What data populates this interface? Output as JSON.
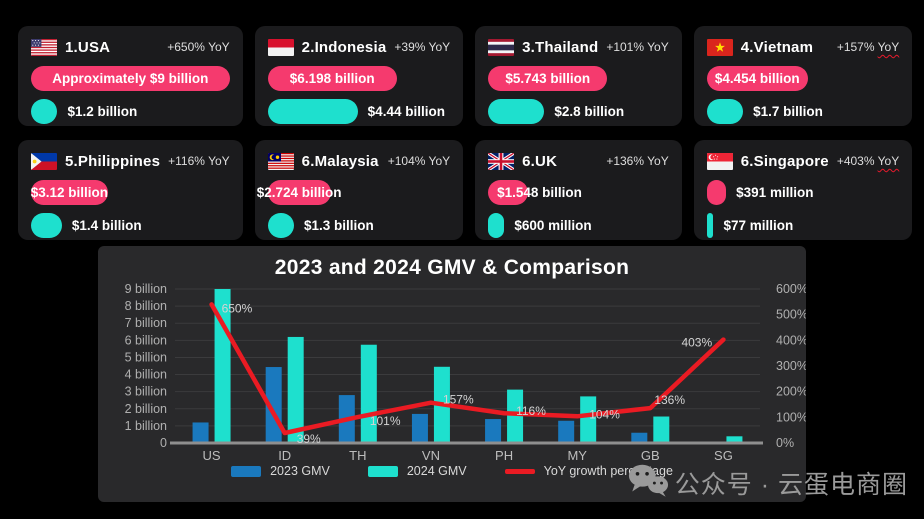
{
  "cards": [
    {
      "name": "1.USA",
      "yoy": "+650%",
      "yoy_label": "YoY",
      "yoy_wavy": false,
      "gmv_2024": "Approximately $9 billion",
      "gmv_2024_billion": 9.0,
      "pink_label_mode": "inside",
      "gmv_2023": "$1.2 billion",
      "gmv_2023_billion": 1.2,
      "flag": "usa-flag"
    },
    {
      "name": "2.Indonesia",
      "yoy": "+39% ",
      "yoy_label": "YoY",
      "yoy_wavy": false,
      "gmv_2024": "$6.198 billion",
      "gmv_2024_billion": 6.198,
      "pink_label_mode": "inside",
      "gmv_2023": "$4.44 billion",
      "gmv_2023_billion": 4.44,
      "flag": "indonesia-flag"
    },
    {
      "name": "3.Thailand",
      "yoy": "+101%",
      "yoy_label": "YoY",
      "yoy_wavy": false,
      "gmv_2024": "$5.743 billion",
      "gmv_2024_billion": 5.743,
      "pink_label_mode": "inside",
      "gmv_2023": "$2.8 billion",
      "gmv_2023_billion": 2.8,
      "flag": "thailand-flag"
    },
    {
      "name": "4.Vietnam",
      "yoy": "+157%",
      "yoy_label": "YoY",
      "yoy_wavy": true,
      "gmv_2024": "$4.454 billion",
      "gmv_2024_billion": 4.454,
      "pink_label_mode": "inside",
      "gmv_2023": "$1.7 billion",
      "gmv_2023_billion": 1.7,
      "flag": "vietnam-flag"
    },
    {
      "name": "5.Philippines",
      "yoy": "+116%",
      "yoy_label": "YoY",
      "yoy_wavy": false,
      "gmv_2024": "$3.12 billion",
      "gmv_2024_billion": 3.12,
      "pink_label_mode": "inside",
      "gmv_2023": "$1.4 billion",
      "gmv_2023_billion": 1.4,
      "flag": "philippines-flag"
    },
    {
      "name": "6.Malaysia",
      "yoy": "+104%",
      "yoy_label": "YoY",
      "yoy_wavy": false,
      "gmv_2024": "$2.724 billion",
      "gmv_2024_billion": 2.724,
      "pink_label_mode": "inside",
      "gmv_2023": "$1.3 billion",
      "gmv_2023_billion": 1.3,
      "flag": "malaysia-flag"
    },
    {
      "name": "6.UK",
      "yoy": "+136%",
      "yoy_label": "YoY",
      "yoy_wavy": false,
      "gmv_2024": "$1.548 billion",
      "gmv_2024_billion": 1.548,
      "pink_label_mode": "overflow",
      "gmv_2023": "$600 million",
      "gmv_2023_billion": 0.6,
      "flag": "uk-flag"
    },
    {
      "name": "6.Singapore",
      "yoy": "+403%",
      "yoy_label": "YoY",
      "yoy_wavy": true,
      "gmv_2024": "$391 million",
      "gmv_2024_billion": 0.391,
      "pink_label_mode": "outside",
      "gmv_2023": "$77 million",
      "gmv_2023_billion": 0.077,
      "flag": "singapore-flag"
    }
  ],
  "chart": {
    "title": "2023 and 2024 GMV & Comparison"
  },
  "chart_data": {
    "type": "bar+line combo",
    "title": "2023 and 2024 GMV & Comparison",
    "categories": [
      "US",
      "ID",
      "TH",
      "VN",
      "PH",
      "MY",
      "GB",
      "SG"
    ],
    "series": [
      {
        "name": "2023 GMV",
        "type": "bar",
        "axis": "left",
        "color": "#1a79be",
        "values": [
          1.2,
          4.44,
          2.8,
          1.7,
          1.4,
          1.3,
          0.6,
          0.077
        ]
      },
      {
        "name": "2024 GMV",
        "type": "bar",
        "axis": "left",
        "color": "#1ee0ce",
        "values": [
          9.0,
          6.198,
          5.743,
          4.454,
          3.12,
          2.724,
          1.548,
          0.391
        ]
      },
      {
        "name": "YoY growth percentage",
        "type": "line",
        "axis": "right",
        "color": "#ea1b23",
        "values": [
          650,
          39,
          101,
          157,
          116,
          104,
          136,
          403
        ],
        "point_labels": [
          "650%",
          "39%",
          "101%",
          "157%",
          "116%",
          "104%",
          "136%",
          "403%"
        ]
      }
    ],
    "left_axis": {
      "max": 9,
      "ticks": [
        {
          "v": 9,
          "label": "9 billion"
        },
        {
          "v": 8,
          "label": "8 billion"
        },
        {
          "v": 7,
          "label": "7 billion"
        },
        {
          "v": 6,
          "label": "6 billion"
        },
        {
          "v": 5,
          "label": "5 billion"
        },
        {
          "v": 4,
          "label": "4 billion"
        },
        {
          "v": 3,
          "label": "3 billion"
        },
        {
          "v": 2,
          "label": "2 billion"
        },
        {
          "v": 1,
          "label": "1 billion"
        },
        {
          "v": 0,
          "label": "0"
        }
      ]
    },
    "right_axis": {
      "max": 600,
      "ticks": [
        {
          "v": 600,
          "label": "600%"
        },
        {
          "v": 500,
          "label": "500%"
        },
        {
          "v": 400,
          "label": "400%"
        },
        {
          "v": 300,
          "label": "300%"
        },
        {
          "v": 200,
          "label": "200%"
        },
        {
          "v": 100,
          "label": "100%"
        },
        {
          "v": 0,
          "label": "0%"
        }
      ]
    },
    "grid": true,
    "legend_position": "bottom"
  },
  "watermark": {
    "text": "公众号 · 云蛋电商圈"
  },
  "colors": {
    "page_bg": "#000000",
    "card_bg": "#1b1b1d",
    "panel_bg": "#29292b",
    "pink": "#f53a6e",
    "cyan": "#1ee0ce",
    "bar_2023": "#1a79be",
    "bar_2024": "#1ee0ce",
    "line_red": "#ea1b23"
  }
}
